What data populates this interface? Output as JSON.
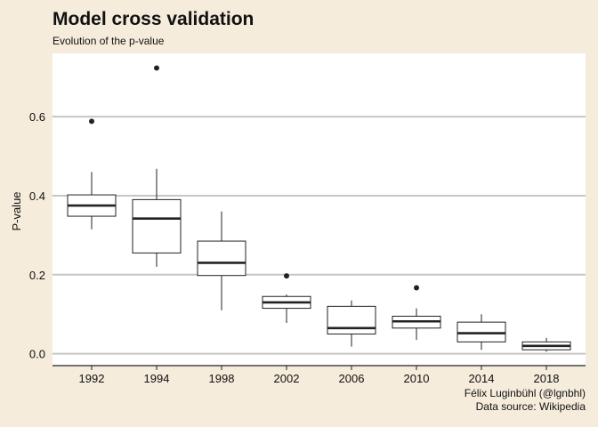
{
  "header": {
    "title": "Model cross validation",
    "subtitle": "Evolution of the p-value"
  },
  "caption": {
    "line1": "Félix Luginbühl (@lgnbhl)",
    "line2": "Data source: Wikipedia"
  },
  "chart_data": {
    "type": "boxplot",
    "ylabel": "P-value",
    "xlabel": "",
    "ylim": [
      -0.03,
      0.76
    ],
    "yticks": [
      0.0,
      0.2,
      0.4,
      0.6
    ],
    "ytick_labels": [
      "0.0",
      "0.2",
      "0.4",
      "0.6"
    ],
    "grid": "horizontal",
    "legend": "none",
    "colors": {
      "background": "#f5ecdb",
      "panel": "#ffffff",
      "grid": "#c6c6c6",
      "box": "#222222"
    },
    "categories": [
      "1992",
      "1994",
      "1998",
      "2002",
      "2006",
      "2010",
      "2014",
      "2018"
    ],
    "boxes": [
      {
        "year": "1992",
        "whisker_low": 0.315,
        "q1": 0.348,
        "median": 0.375,
        "q3": 0.402,
        "whisker_high": 0.46,
        "outliers": [
          0.588
        ]
      },
      {
        "year": "1994",
        "whisker_low": 0.22,
        "q1": 0.255,
        "median": 0.342,
        "q3": 0.39,
        "whisker_high": 0.468,
        "outliers": [
          0.723
        ]
      },
      {
        "year": "1998",
        "whisker_low": 0.11,
        "q1": 0.198,
        "median": 0.23,
        "q3": 0.285,
        "whisker_high": 0.36,
        "outliers": []
      },
      {
        "year": "2002",
        "whisker_low": 0.078,
        "q1": 0.115,
        "median": 0.13,
        "q3": 0.145,
        "whisker_high": 0.15,
        "outliers": [
          0.197
        ]
      },
      {
        "year": "2006",
        "whisker_low": 0.018,
        "q1": 0.05,
        "median": 0.065,
        "q3": 0.12,
        "whisker_high": 0.135,
        "outliers": []
      },
      {
        "year": "2010",
        "whisker_low": 0.035,
        "q1": 0.065,
        "median": 0.082,
        "q3": 0.095,
        "whisker_high": 0.115,
        "outliers": [
          0.167
        ]
      },
      {
        "year": "2014",
        "whisker_low": 0.01,
        "q1": 0.03,
        "median": 0.052,
        "q3": 0.08,
        "whisker_high": 0.1,
        "outliers": []
      },
      {
        "year": "2018",
        "whisker_low": 0.005,
        "q1": 0.01,
        "median": 0.02,
        "q3": 0.03,
        "whisker_high": 0.04,
        "outliers": []
      }
    ]
  }
}
